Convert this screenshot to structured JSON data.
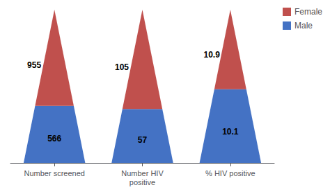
{
  "chart_data": {
    "type": "pyramid",
    "categories": [
      "Number screened",
      "Number HIV\npositive",
      "% HIV positive"
    ],
    "series": [
      {
        "name": "Male",
        "color": "#4472C4",
        "values": [
          566,
          57,
          10.1
        ]
      },
      {
        "name": "Female",
        "color": "#C0504D",
        "values": [
          955,
          105,
          10.9
        ]
      }
    ],
    "data_labels": true,
    "legend": "upper right",
    "tick_labels": "x"
  }
}
